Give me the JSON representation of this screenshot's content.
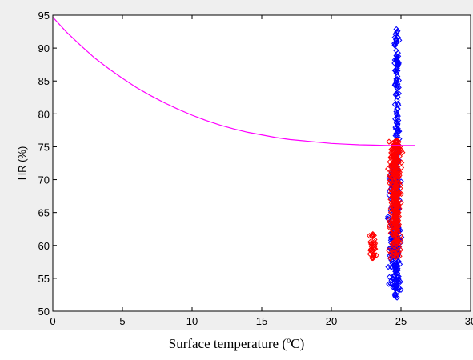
{
  "chart_data": {
    "type": "scatter",
    "xlabel": "Surface temperature (ºC)",
    "ylabel": "HR (%)",
    "xlim": [
      0,
      30
    ],
    "ylim": [
      50,
      95
    ],
    "xticks": [
      "0",
      "5",
      "10",
      "15",
      "20",
      "25",
      "30"
    ],
    "yticks": [
      "50",
      "55",
      "60",
      "65",
      "70",
      "75",
      "80",
      "85",
      "90",
      "95"
    ],
    "grid": false,
    "curve": {
      "kind": "line",
      "color": "#ff00ff",
      "x": [
        0,
        1,
        2,
        3,
        4,
        5,
        6,
        7,
        8,
        9,
        10,
        11,
        12,
        13,
        14,
        15,
        16,
        17,
        18,
        19,
        20,
        21,
        22,
        23,
        24,
        25,
        26
      ],
      "y": [
        94.7,
        92.4,
        90.4,
        88.5,
        86.9,
        85.4,
        84.0,
        82.8,
        81.7,
        80.7,
        79.8,
        79.0,
        78.3,
        77.7,
        77.2,
        76.8,
        76.4,
        76.1,
        75.9,
        75.7,
        75.5,
        75.4,
        75.3,
        75.25,
        75.2,
        75.2,
        75.2
      ]
    },
    "series": [
      {
        "marker": "diamond-open",
        "color": "#0000ff",
        "x_range": [
          22.5,
          26.0
        ],
        "y_range": [
          52,
          93
        ]
      },
      {
        "marker": "diamond-open",
        "color": "#ff0000",
        "x_range": [
          22.0,
          26.5
        ],
        "y_range": [
          57,
          76
        ]
      }
    ]
  }
}
